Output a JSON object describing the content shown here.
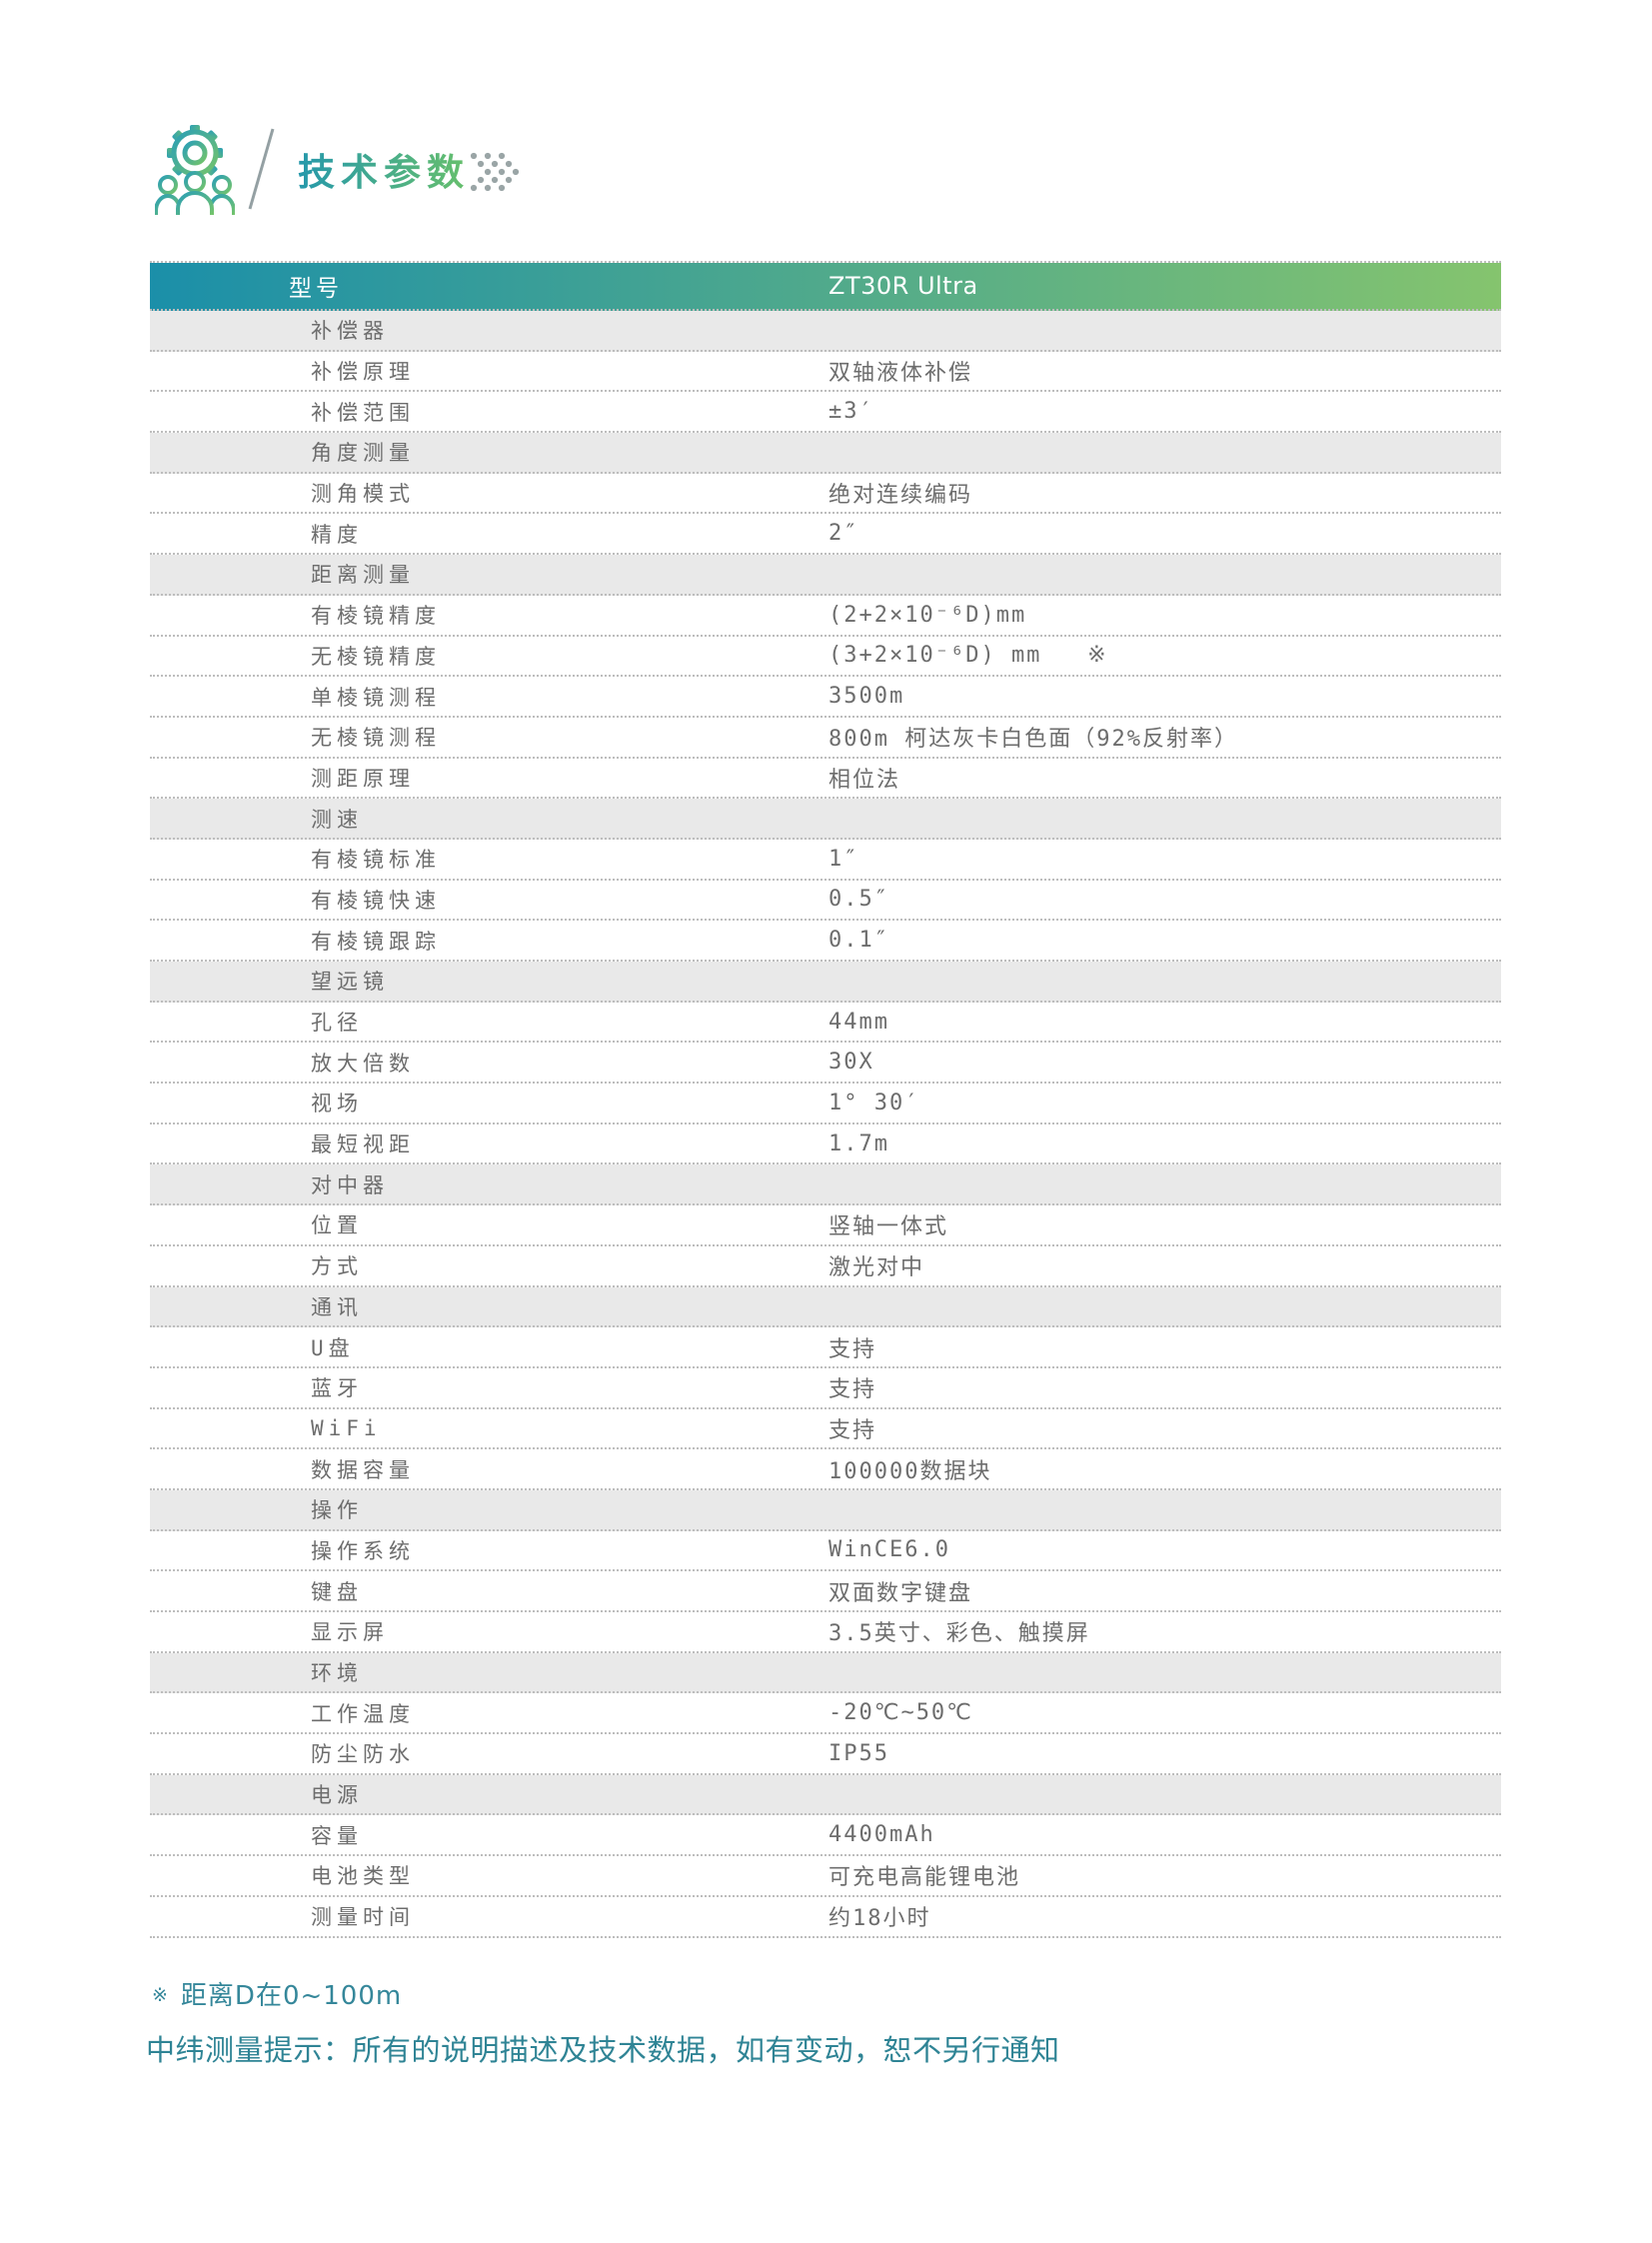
{
  "header": {
    "title": "技术参数",
    "icon": "gears-people",
    "divider": "/"
  },
  "table": {
    "columns": {
      "model_label": "型号",
      "model_value": "ZT30R Ultra"
    },
    "rows": [
      {
        "type": "section",
        "label": "补偿器"
      },
      {
        "type": "item",
        "label": "补偿原理",
        "value": "双轴液体补偿"
      },
      {
        "type": "item",
        "label": "补偿范围",
        "value": "±3′"
      },
      {
        "type": "section",
        "label": "角度测量"
      },
      {
        "type": "item",
        "label": "测角模式",
        "value": "绝对连续编码"
      },
      {
        "type": "item",
        "label": "精度",
        "value": "2″"
      },
      {
        "type": "section",
        "label": "距离测量"
      },
      {
        "type": "item",
        "label": "有棱镜精度",
        "value": "(2+2×10⁻⁶D)mm"
      },
      {
        "type": "item",
        "label": "无棱镜精度",
        "value": "(3+2×10⁻⁶D) mm   ※"
      },
      {
        "type": "item",
        "label": "单棱镜测程",
        "value": "3500m"
      },
      {
        "type": "item",
        "label": "无棱镜测程",
        "value": "800m 柯达灰卡白色面（92%反射率）"
      },
      {
        "type": "item",
        "label": "测距原理",
        "value": "相位法"
      },
      {
        "type": "section",
        "label": "测速"
      },
      {
        "type": "item",
        "label": "有棱镜标准",
        "value": "1″"
      },
      {
        "type": "item",
        "label": "有棱镜快速",
        "value": "0.5″"
      },
      {
        "type": "item",
        "label": "有棱镜跟踪",
        "value": "0.1″"
      },
      {
        "type": "section",
        "label": "望远镜"
      },
      {
        "type": "item",
        "label": "孔径",
        "value": "44mm"
      },
      {
        "type": "item",
        "label": "放大倍数",
        "value": "30X"
      },
      {
        "type": "item",
        "label": "视场",
        "value": "1° 30′"
      },
      {
        "type": "item",
        "label": "最短视距",
        "value": "1.7m"
      },
      {
        "type": "section",
        "label": "对中器"
      },
      {
        "type": "item",
        "label": "位置",
        "value": "竖轴一体式"
      },
      {
        "type": "item",
        "label": "方式",
        "value": "激光对中"
      },
      {
        "type": "section",
        "label": "通讯"
      },
      {
        "type": "item",
        "label": "U盘",
        "value": "支持"
      },
      {
        "type": "item",
        "label": "蓝牙",
        "value": "支持"
      },
      {
        "type": "item",
        "label": "WiFi",
        "value": "支持"
      },
      {
        "type": "item",
        "label": "数据容量",
        "value": "100000数据块"
      },
      {
        "type": "section",
        "label": "操作"
      },
      {
        "type": "item",
        "label": "操作系统",
        "value": "WinCE6.0"
      },
      {
        "type": "item",
        "label": "键盘",
        "value": "双面数字键盘"
      },
      {
        "type": "item",
        "label": "显示屏",
        "value": "3.5英寸、彩色、触摸屏"
      },
      {
        "type": "section",
        "label": "环境"
      },
      {
        "type": "item",
        "label": "工作温度",
        "value": "-20℃~50℃"
      },
      {
        "type": "item",
        "label": "防尘防水",
        "value": "IP55"
      },
      {
        "type": "section",
        "label": "电源"
      },
      {
        "type": "item",
        "label": "容量",
        "value": "4400mAh"
      },
      {
        "type": "item",
        "label": "电池类型",
        "value": "可充电高能锂电池"
      },
      {
        "type": "item",
        "label": "测量时间",
        "value": "约18小时"
      }
    ]
  },
  "footnotes": {
    "marker": "※",
    "note1": "距离D在0~100m",
    "note2": "中纬测量提示：所有的说明描述及技术数据，如有变动，恕不另行通知"
  },
  "colors": {
    "table_header_gradient_start": "#1b8fa9",
    "table_header_gradient_end": "#85c46e",
    "title_gradient_start": "#2598ab",
    "title_gradient_end": "#68c06b",
    "section_row_background": "#e9e9e9",
    "table_text": "#6d6d6d",
    "footnote_text": "#35879a"
  }
}
